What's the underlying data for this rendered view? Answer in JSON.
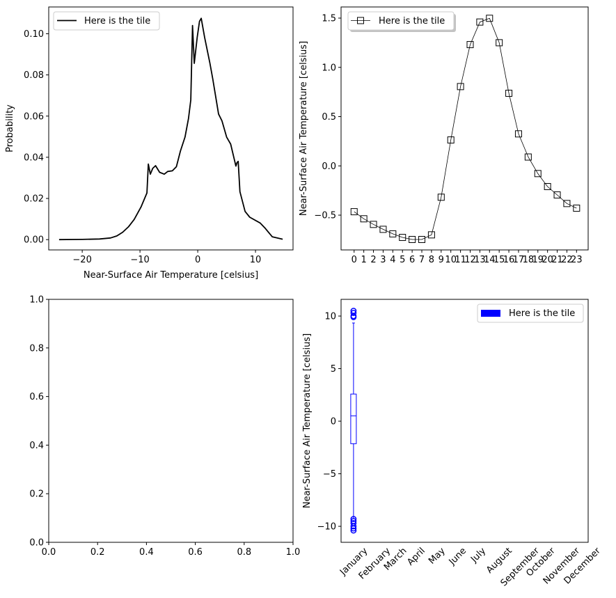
{
  "chart_data": [
    {
      "type": "line",
      "xlabel": "Near-Surface Air Temperature [celsius]",
      "ylabel": "Probability",
      "xlim": [
        -25.8,
        16.5
      ],
      "ylim": [
        -0.005,
        0.113
      ],
      "xticks": [
        -20,
        -10,
        0,
        10
      ],
      "xtick_labels": [
        "−20",
        "−10",
        "0",
        "10"
      ],
      "yticks": [
        0,
        0.02,
        0.04,
        0.06,
        0.08,
        0.1
      ],
      "ytick_labels": [
        "0.00",
        "0.02",
        "0.04",
        "0.06",
        "0.08",
        "0.10"
      ],
      "legend": {
        "label": "Here is the tile",
        "placement": "upper left"
      },
      "color": "#000000",
      "series": [
        {
          "name": "Here is the tile",
          "x": [
            -24,
            -20,
            -17,
            -15.1,
            -14,
            -13,
            -12,
            -11,
            -9.8,
            -8.8,
            -8.55,
            -8.2,
            -7.8,
            -7.3,
            -6.6,
            -5.8,
            -5.2,
            -4.4,
            -3.7,
            -3.0,
            -2.2,
            -1.6,
            -1.2,
            -0.9,
            -0.6,
            -0.1,
            0.3,
            0.6,
            1.2,
            2.1,
            2.6,
            3.6,
            4.2,
            5.0,
            5.7,
            6.6,
            6.8,
            7.0,
            7.3,
            8.2,
            9.0,
            10.8,
            11.6,
            12.9,
            14.7
          ],
          "y": [
            0,
            0.0001,
            0.0003,
            0.0008,
            0.0018,
            0.0036,
            0.0062,
            0.0098,
            0.016,
            0.0227,
            0.0367,
            0.0318,
            0.0346,
            0.0359,
            0.0327,
            0.0318,
            0.0331,
            0.0334,
            0.0354,
            0.043,
            0.0498,
            0.0588,
            0.0678,
            0.104,
            0.0856,
            0.0982,
            0.106,
            0.1075,
            0.0982,
            0.0858,
            0.078,
            0.061,
            0.0577,
            0.0498,
            0.0464,
            0.0357,
            0.0374,
            0.038,
            0.0233,
            0.0137,
            0.0109,
            0.0081,
            0.0058,
            0.0014,
            0.0002
          ]
        }
      ]
    },
    {
      "type": "line",
      "ylabel": "Near-Surface Air Temperature [celsius]",
      "xlim": [
        -1.35,
        24.2
      ],
      "ylim": [
        -0.853,
        1.613
      ],
      "categories": [
        "0",
        "1",
        "2",
        "3",
        "4",
        "5",
        "6",
        "7",
        "8",
        "9",
        "10",
        "11",
        "12",
        "13",
        "14",
        "15",
        "16",
        "17",
        "18",
        "19",
        "20",
        "21",
        "22",
        "23"
      ],
      "yticks": [
        -0.5,
        0.0,
        0.5,
        1.0,
        1.5
      ],
      "ytick_labels": [
        "−0.5",
        "0.0",
        "0.5",
        "1.0",
        "1.5"
      ],
      "legend": {
        "label": "Here is the tile",
        "placement": "upper left",
        "shadow": true
      },
      "marker": "square",
      "color": "#000000",
      "series": [
        {
          "name": "Here is the tile",
          "values": [
            -0.465,
            -0.537,
            -0.594,
            -0.644,
            -0.69,
            -0.726,
            -0.747,
            -0.747,
            -0.7,
            -0.318,
            0.263,
            0.805,
            1.231,
            1.46,
            1.498,
            1.25,
            0.737,
            0.325,
            0.09,
            -0.078,
            -0.21,
            -0.295,
            -0.382,
            -0.429
          ]
        }
      ]
    },
    {
      "type": "line",
      "xlim": [
        0,
        1
      ],
      "ylim": [
        0,
        1
      ],
      "xticks": [
        "0.0",
        "0.2",
        "0.4",
        "0.6",
        "0.8",
        "1.0"
      ],
      "yticks": [
        "0.0",
        "0.2",
        "0.4",
        "0.6",
        "0.8",
        "1.0"
      ],
      "series": []
    },
    {
      "type": "box",
      "ylabel": "Near-Surface Air Temperature [celsius]",
      "ylim": [
        -11.52,
        11.59
      ],
      "categories": [
        "January",
        "February",
        "March",
        "April",
        "May",
        "June",
        "July",
        "August",
        "September",
        "October",
        "November",
        "December"
      ],
      "yticks": [
        -10,
        -5,
        0,
        5,
        10
      ],
      "ytick_labels": [
        "−10",
        "−5",
        "0",
        "5",
        "10"
      ],
      "legend": {
        "label": "Here is the tile",
        "placement": "upper right"
      },
      "color": "#0000ff",
      "boxes": [
        {
          "category": "January",
          "whisker_low": -9.27,
          "q1": -2.14,
          "median": 0.51,
          "q3": 2.58,
          "whisker_high": 9.34,
          "outliers": [
            10.5,
            10.3,
            10.0,
            9.9,
            -9.3,
            -9.5,
            -9.7,
            -10.0,
            -10.2,
            -10.4
          ]
        }
      ]
    }
  ]
}
